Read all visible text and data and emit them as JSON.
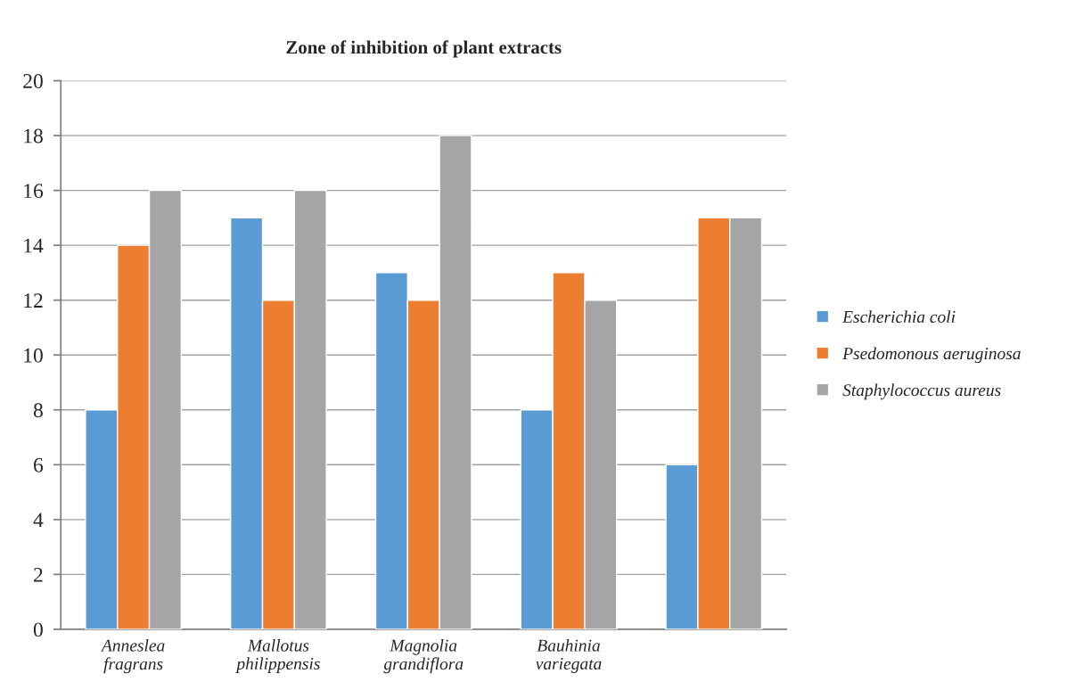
{
  "chart_data": {
    "type": "bar",
    "title": "Zone of inhibition of plant extracts",
    "categories": [
      "Anneslea fragrans",
      "Mallotus philippensis",
      "Magnolia grandiflora",
      "Bauhinia variegata",
      null
    ],
    "series": [
      {
        "name": "Escherichia coli",
        "color": "#5b9bd5",
        "values": [
          8,
          15,
          13,
          8,
          6
        ]
      },
      {
        "name": "Psedomonous aeruginosa",
        "color": "#ed7d31",
        "values": [
          14,
          12,
          12,
          13,
          15
        ]
      },
      {
        "name": "Staphylococcus aureus",
        "color": "#a5a5a5",
        "values": [
          16,
          16,
          18,
          12,
          15
        ]
      }
    ],
    "ylim": [
      0,
      20
    ],
    "yticks": [
      0,
      2,
      4,
      6,
      8,
      10,
      12,
      14,
      16,
      18,
      20
    ],
    "grid": "y",
    "legend": "right"
  }
}
